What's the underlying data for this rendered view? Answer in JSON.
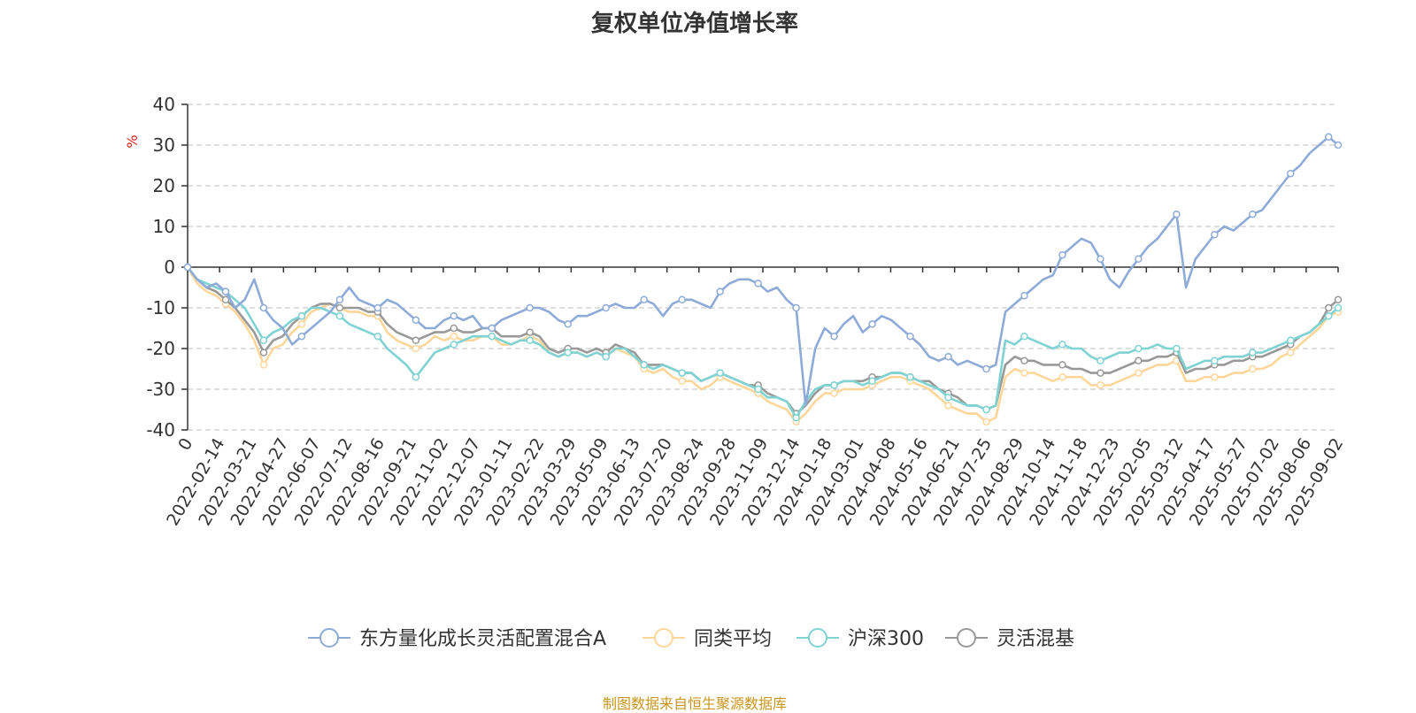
{
  "colors": {
    "fund": "#8eabd8",
    "peer_avg": "#fdd69a",
    "csi300": "#7fd3d3",
    "flexible_mixed": "#999999",
    "unit": "#e02020",
    "source": "#c8961e",
    "title": "#333333"
  },
  "chart_data": {
    "type": "line",
    "title": "复权单位净值增长率",
    "ylabel": "%",
    "ylim": [
      -40,
      40
    ],
    "yticks": [
      40,
      30,
      20,
      10,
      0,
      -10,
      -20,
      -30,
      -40
    ],
    "grid": true,
    "legend_position": "bottom",
    "x_tick_labels": [
      "0",
      "2022-02-14",
      "2022-03-21",
      "2022-04-27",
      "2022-06-07",
      "2022-07-12",
      "2022-08-16",
      "2022-09-21",
      "2022-11-02",
      "2022-12-07",
      "2023-01-11",
      "2023-02-22",
      "2023-03-29",
      "2023-05-09",
      "2023-06-13",
      "2023-07-20",
      "2023-08-24",
      "2023-09-28",
      "2023-11-09",
      "2023-12-14",
      "2024-01-18",
      "2024-03-01",
      "2024-04-08",
      "2024-05-16",
      "2024-06-21",
      "2024-07-25",
      "2024-08-29",
      "2024-10-14",
      "2024-11-18",
      "2024-12-23",
      "2025-02-05",
      "2025-03-12",
      "2025-04-17",
      "2025-05-27",
      "2025-07-02",
      "2025-08-06",
      "2025-09-02"
    ],
    "series": [
      {
        "name": "东方量化成长灵活配置混合A",
        "color_key": "fund",
        "values": [
          0,
          -3,
          -5,
          -4,
          -6,
          -10,
          -8,
          -3,
          -10,
          -13,
          -15,
          -19,
          -17,
          -15,
          -13,
          -11,
          -8,
          -5,
          -8,
          -9,
          -10,
          -8,
          -9,
          -11,
          -13,
          -15,
          -15,
          -13,
          -12,
          -13,
          -12,
          -15,
          -15,
          -13,
          -12,
          -11,
          -10,
          -10,
          -11,
          -13,
          -14,
          -12,
          -12,
          -11,
          -10,
          -9,
          -10,
          -10,
          -8,
          -9,
          -12,
          -9,
          -8,
          -8,
          -9,
          -10,
          -6,
          -4,
          -3,
          -3,
          -4,
          -6,
          -5,
          -8,
          -10,
          -34,
          -20,
          -15,
          -17,
          -14,
          -12,
          -16,
          -14,
          -12,
          -13,
          -15,
          -17,
          -19,
          -22,
          -23,
          -22,
          -24,
          -23,
          -24,
          -25,
          -24,
          -11,
          -9,
          -7,
          -5,
          -3,
          -2,
          3,
          5,
          7,
          6,
          2,
          -3,
          -5,
          -1,
          2,
          5,
          7,
          10,
          13,
          -5,
          2,
          5,
          8,
          10,
          9,
          11,
          13,
          14,
          17,
          20,
          23,
          25,
          28,
          30,
          32,
          30
        ]
      },
      {
        "name": "同类平均",
        "color_key": "peer_avg",
        "values": [
          0,
          -4,
          -6,
          -7,
          -9,
          -11,
          -14,
          -18,
          -24,
          -20,
          -19,
          -16,
          -14,
          -11,
          -10,
          -9,
          -10,
          -11,
          -11,
          -12,
          -12,
          -16,
          -18,
          -19,
          -20,
          -19,
          -17,
          -18,
          -17,
          -18,
          -18,
          -17,
          -17,
          -19,
          -19,
          -18,
          -17,
          -18,
          -21,
          -22,
          -21,
          -21,
          -22,
          -21,
          -22,
          -20,
          -21,
          -22,
          -25,
          -26,
          -25,
          -27,
          -28,
          -28,
          -30,
          -29,
          -27,
          -28,
          -29,
          -30,
          -31,
          -33,
          -34,
          -35,
          -38,
          -36,
          -33,
          -31,
          -31,
          -30,
          -30,
          -30,
          -29,
          -28,
          -27,
          -27,
          -28,
          -29,
          -30,
          -32,
          -34,
          -35,
          -36,
          -36,
          -38,
          -37,
          -27,
          -25,
          -26,
          -26,
          -27,
          -28,
          -27,
          -27,
          -27,
          -29,
          -29,
          -29,
          -28,
          -27,
          -26,
          -25,
          -24,
          -24,
          -23,
          -28,
          -28,
          -27,
          -27,
          -27,
          -26,
          -26,
          -25,
          -25,
          -24,
          -22,
          -21,
          -19,
          -17,
          -15,
          -12,
          -11
        ]
      },
      {
        "name": "沪深300",
        "color_key": "csi300",
        "values": [
          0,
          -3,
          -4,
          -5,
          -6,
          -8,
          -10,
          -14,
          -18,
          -16,
          -15,
          -13,
          -12,
          -10,
          -10,
          -11,
          -12,
          -14,
          -15,
          -16,
          -17,
          -20,
          -22,
          -24,
          -27,
          -24,
          -21,
          -20,
          -19,
          -18,
          -17,
          -17,
          -17,
          -18,
          -19,
          -18,
          -18,
          -19,
          -21,
          -22,
          -21,
          -21,
          -22,
          -21,
          -22,
          -20,
          -20,
          -22,
          -24,
          -25,
          -24,
          -25,
          -26,
          -26,
          -28,
          -27,
          -26,
          -27,
          -28,
          -29,
          -30,
          -32,
          -32,
          -33,
          -37,
          -33,
          -30,
          -29,
          -29,
          -28,
          -28,
          -29,
          -28,
          -27,
          -26,
          -26,
          -27,
          -28,
          -29,
          -30,
          -32,
          -33,
          -34,
          -34,
          -35,
          -34,
          -18,
          -19,
          -17,
          -18,
          -19,
          -20,
          -19,
          -20,
          -20,
          -22,
          -23,
          -22,
          -21,
          -21,
          -20,
          -20,
          -19,
          -20,
          -20,
          -25,
          -24,
          -23,
          -23,
          -22,
          -22,
          -22,
          -21,
          -21,
          -20,
          -19,
          -18,
          -17,
          -16,
          -14,
          -12,
          -10
        ]
      },
      {
        "name": "灵活混基",
        "color_key": "flexible_mixed",
        "values": [
          0,
          -3,
          -5,
          -6,
          -8,
          -10,
          -13,
          -16,
          -21,
          -18,
          -17,
          -14,
          -12,
          -10,
          -9,
          -9,
          -10,
          -10,
          -10,
          -11,
          -11,
          -14,
          -16,
          -17,
          -18,
          -17,
          -16,
          -16,
          -15,
          -16,
          -16,
          -15,
          -15,
          -17,
          -17,
          -17,
          -16,
          -17,
          -20,
          -21,
          -20,
          -20,
          -21,
          -20,
          -21,
          -19,
          -20,
          -21,
          -24,
          -24,
          -24,
          -25,
          -26,
          -26,
          -28,
          -27,
          -26,
          -27,
          -28,
          -29,
          -29,
          -31,
          -32,
          -33,
          -36,
          -34,
          -31,
          -29,
          -29,
          -28,
          -28,
          -28,
          -27,
          -27,
          -26,
          -26,
          -27,
          -28,
          -28,
          -30,
          -31,
          -32,
          -34,
          -34,
          -35,
          -34,
          -24,
          -22,
          -23,
          -23,
          -24,
          -24,
          -24,
          -25,
          -25,
          -26,
          -26,
          -26,
          -25,
          -24,
          -23,
          -23,
          -22,
          -22,
          -21,
          -26,
          -25,
          -25,
          -24,
          -24,
          -23,
          -23,
          -22,
          -22,
          -21,
          -20,
          -19,
          -17,
          -16,
          -14,
          -10,
          -8
        ]
      }
    ],
    "legend": [
      {
        "label": "东方量化成长灵活配置混合A",
        "color_key": "fund"
      },
      {
        "label": "同类平均",
        "color_key": "peer_avg"
      },
      {
        "label": "沪深300",
        "color_key": "csi300"
      },
      {
        "label": "灵活混基",
        "color_key": "flexible_mixed"
      }
    ],
    "source": "制图数据来自恒生聚源数据库"
  }
}
